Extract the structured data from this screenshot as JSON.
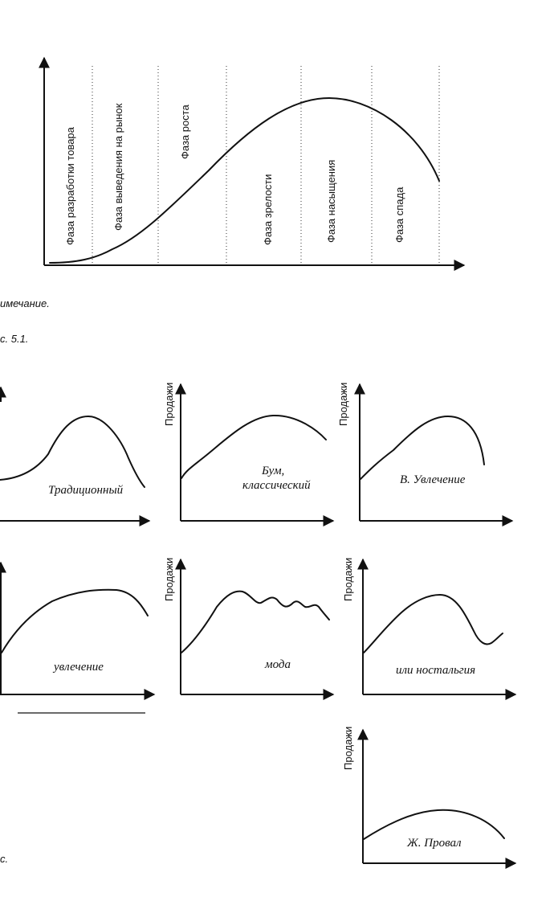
{
  "main_diagram": {
    "phases": [
      "Фаза разработки товара",
      "Фаза выведения на рынок",
      "Фаза роста",
      "Фаза зрелости",
      "Фаза насыщения",
      "Фаза спада"
    ]
  },
  "notes": {
    "note": "имечание.",
    "figure": "с. 5.1.",
    "bottom": "с."
  },
  "small_charts": {
    "y_label": "Продажи",
    "traditional": "Традиционный",
    "boom_line1": "Бум,",
    "boom_line2": "классический",
    "fad": "В. Увлечение",
    "extended_fad": "увлечение",
    "fashion": "мода",
    "nostalgia": "или ностальгия",
    "failure": "Ж. Провал"
  }
}
